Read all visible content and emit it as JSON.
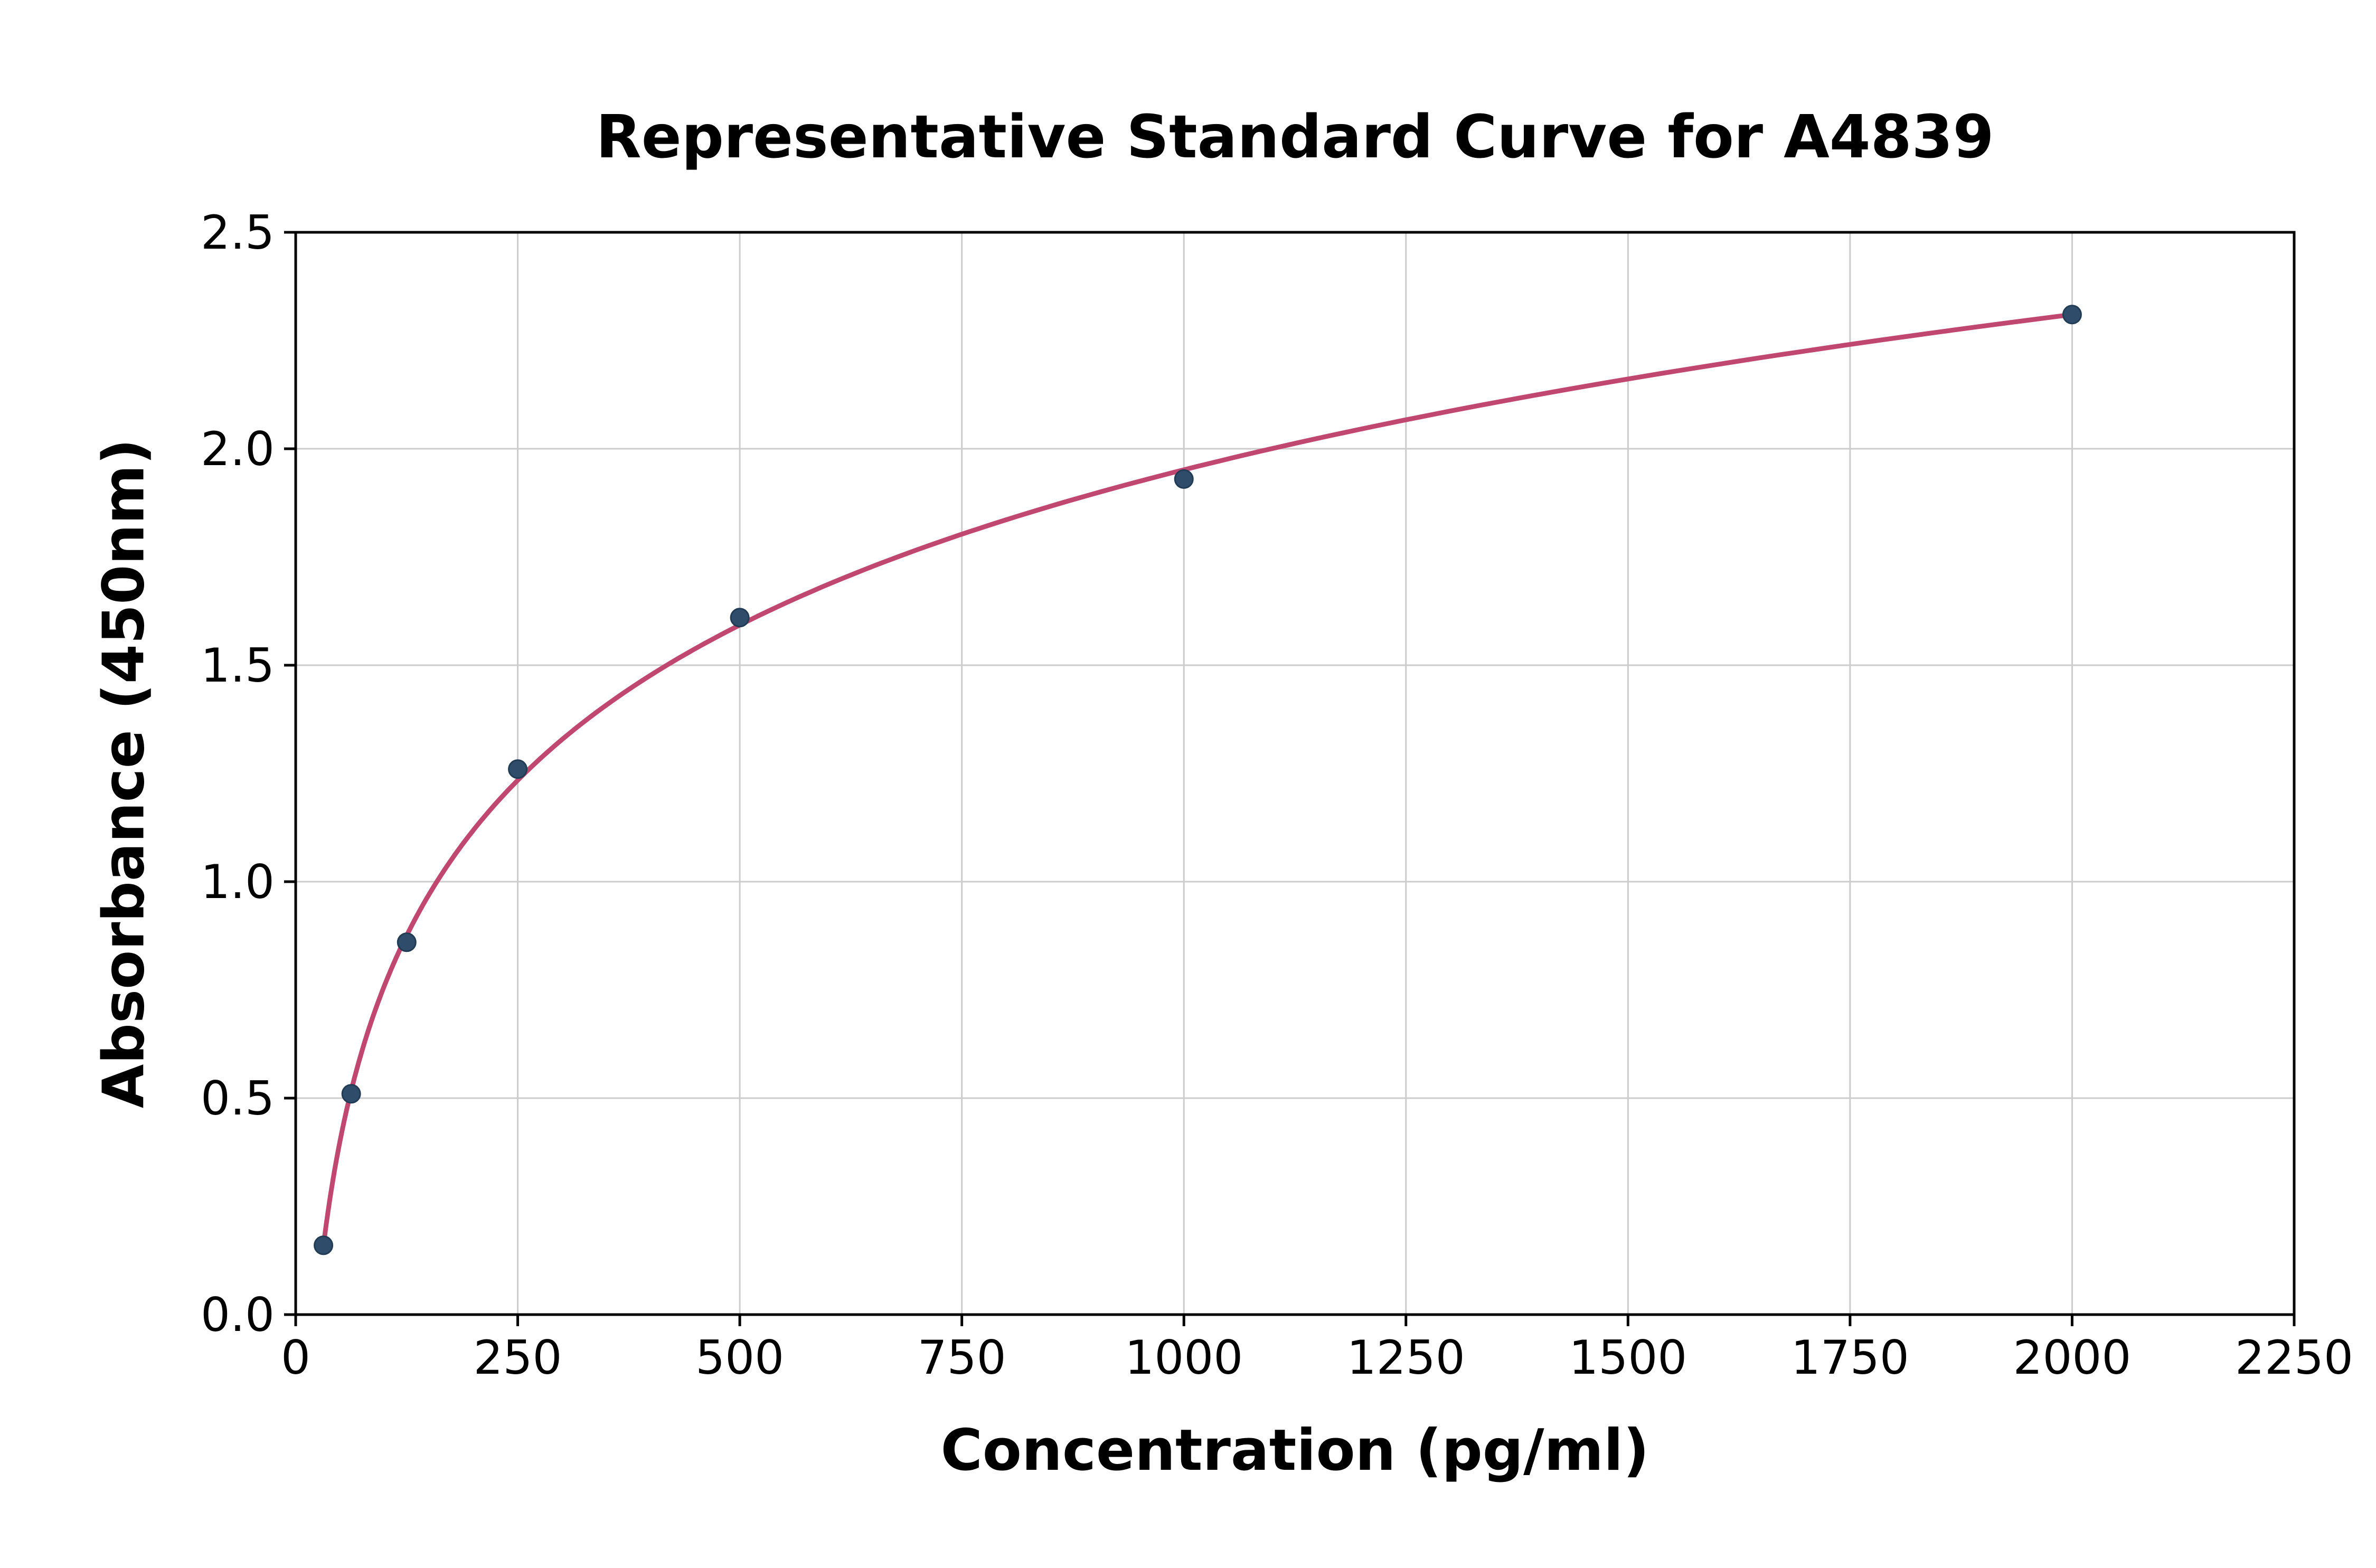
{
  "chart_data": {
    "type": "scatter",
    "title": "Representative Standard Curve for A4839",
    "xlabel": "Concentration (pg/ml)",
    "ylabel": "Absorbance (450nm)",
    "xlim": [
      0,
      2250
    ],
    "ylim": [
      0,
      2.5
    ],
    "x_tick_values": [
      0,
      250,
      500,
      750,
      1000,
      1250,
      1500,
      1750,
      2000,
      2250
    ],
    "x_tick_labels": [
      "0",
      "250",
      "500",
      "750",
      "1000",
      "1250",
      "1500",
      "1750",
      "2000",
      "2250"
    ],
    "y_tick_values": [
      0.0,
      0.5,
      1.0,
      1.5,
      2.0,
      2.5
    ],
    "y_tick_labels": [
      "0.0",
      "0.5",
      "1.0",
      "1.5",
      "2.0",
      "2.5"
    ],
    "grid": true,
    "legend": "none",
    "series": [
      {
        "name": "standard-points",
        "marker": "circle",
        "x": [
          31.25,
          62.5,
          125,
          250,
          500,
          1000,
          2000
        ],
        "y": [
          0.16,
          0.51,
          0.86,
          1.26,
          1.61,
          1.93,
          2.31
        ]
      }
    ],
    "fit_curve": {
      "type": "logarithmic",
      "drawn_through_points": true
    },
    "colors": {
      "curve": "#c0476f",
      "point_fill": "#2f4d6a",
      "point_edge": "#223c55",
      "grid": "#cccccc",
      "axis": "#000000",
      "background": "#ffffff"
    }
  }
}
